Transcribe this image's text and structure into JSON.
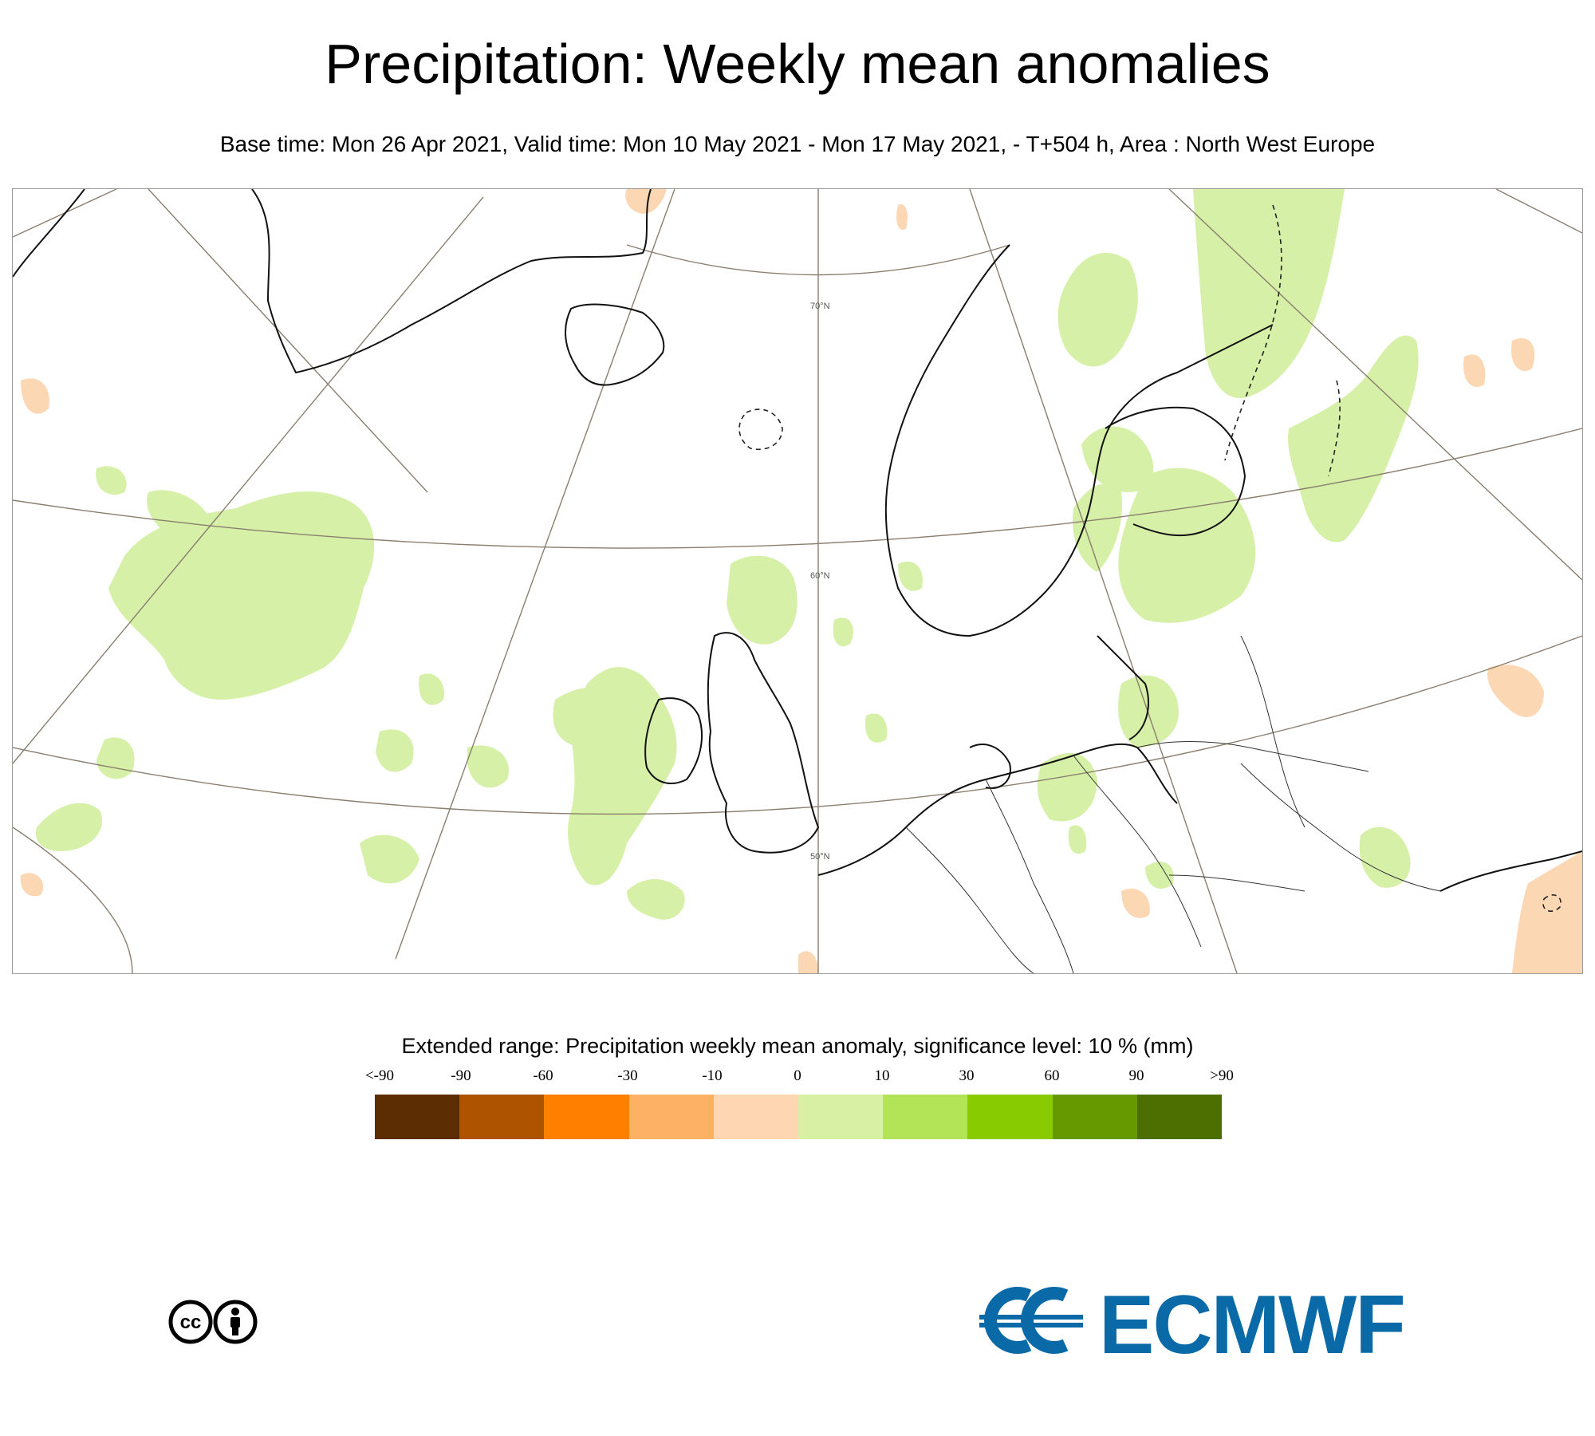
{
  "header": {
    "title": "Precipitation: Weekly mean anomalies",
    "subtitle": "Base time: Mon 26 Apr 2021, Valid time: Mon 10 May 2021 - Mon 17 May 2021, - T+504 h, Area : North West Europe"
  },
  "map": {
    "area": "North West Europe",
    "projection": "polar stereographic",
    "latitude_labels": [
      "70°N",
      "60°N",
      "50°N"
    ],
    "colors": {
      "land_outline": "#000000",
      "graticule": "#8a7e6e",
      "positive_anomaly_fill": "#d6f0a8",
      "negative_anomaly_fill": "#fcd7b4"
    }
  },
  "legend": {
    "title": "Extended range: Precipitation weekly mean anomaly, significance level: 10 % (mm)",
    "labels": [
      "<-90",
      "-90",
      "-60",
      "-30",
      "-10",
      "0",
      "10",
      "30",
      "60",
      "90",
      ">90"
    ],
    "colors": [
      "#5c2c02",
      "#ae5400",
      "#ff7f00",
      "#fdb164",
      "#fed7b2",
      "#d8f0a4",
      "#b3e356",
      "#88cc00",
      "#669900",
      "#4d6e00"
    ]
  },
  "footer": {
    "license_icon": "cc-by-icon",
    "logo_text": "ECMWF",
    "logo_color": "#0a6aa8"
  }
}
